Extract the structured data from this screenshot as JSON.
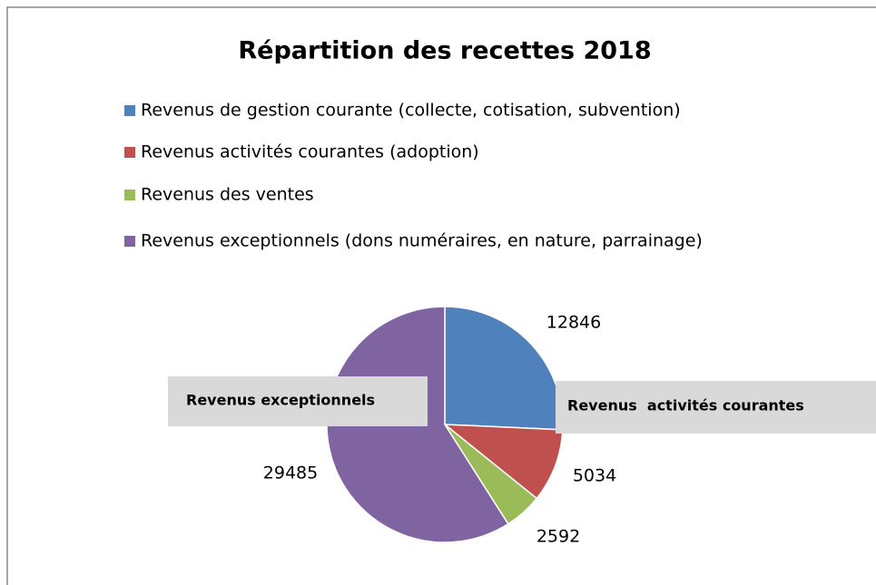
{
  "chart_data": {
    "type": "pie",
    "title": "Répartition des recettes 2018",
    "categories": [
      "Revenus de gestion courante (collecte, cotisation, subvention)",
      "Revenus activités courantes (adoption)",
      "Revenus des ventes",
      "Revenus exceptionnels (dons numéraires, en nature, parrainage)"
    ],
    "values": [
      12846,
      5034,
      2592,
      29485
    ],
    "colors": [
      "#4f81bd",
      "#c0504d",
      "#9bbb59",
      "#8064a2"
    ],
    "annotations": [
      "Revenus exceptionnels",
      "Revenus  activités courantes"
    ]
  }
}
